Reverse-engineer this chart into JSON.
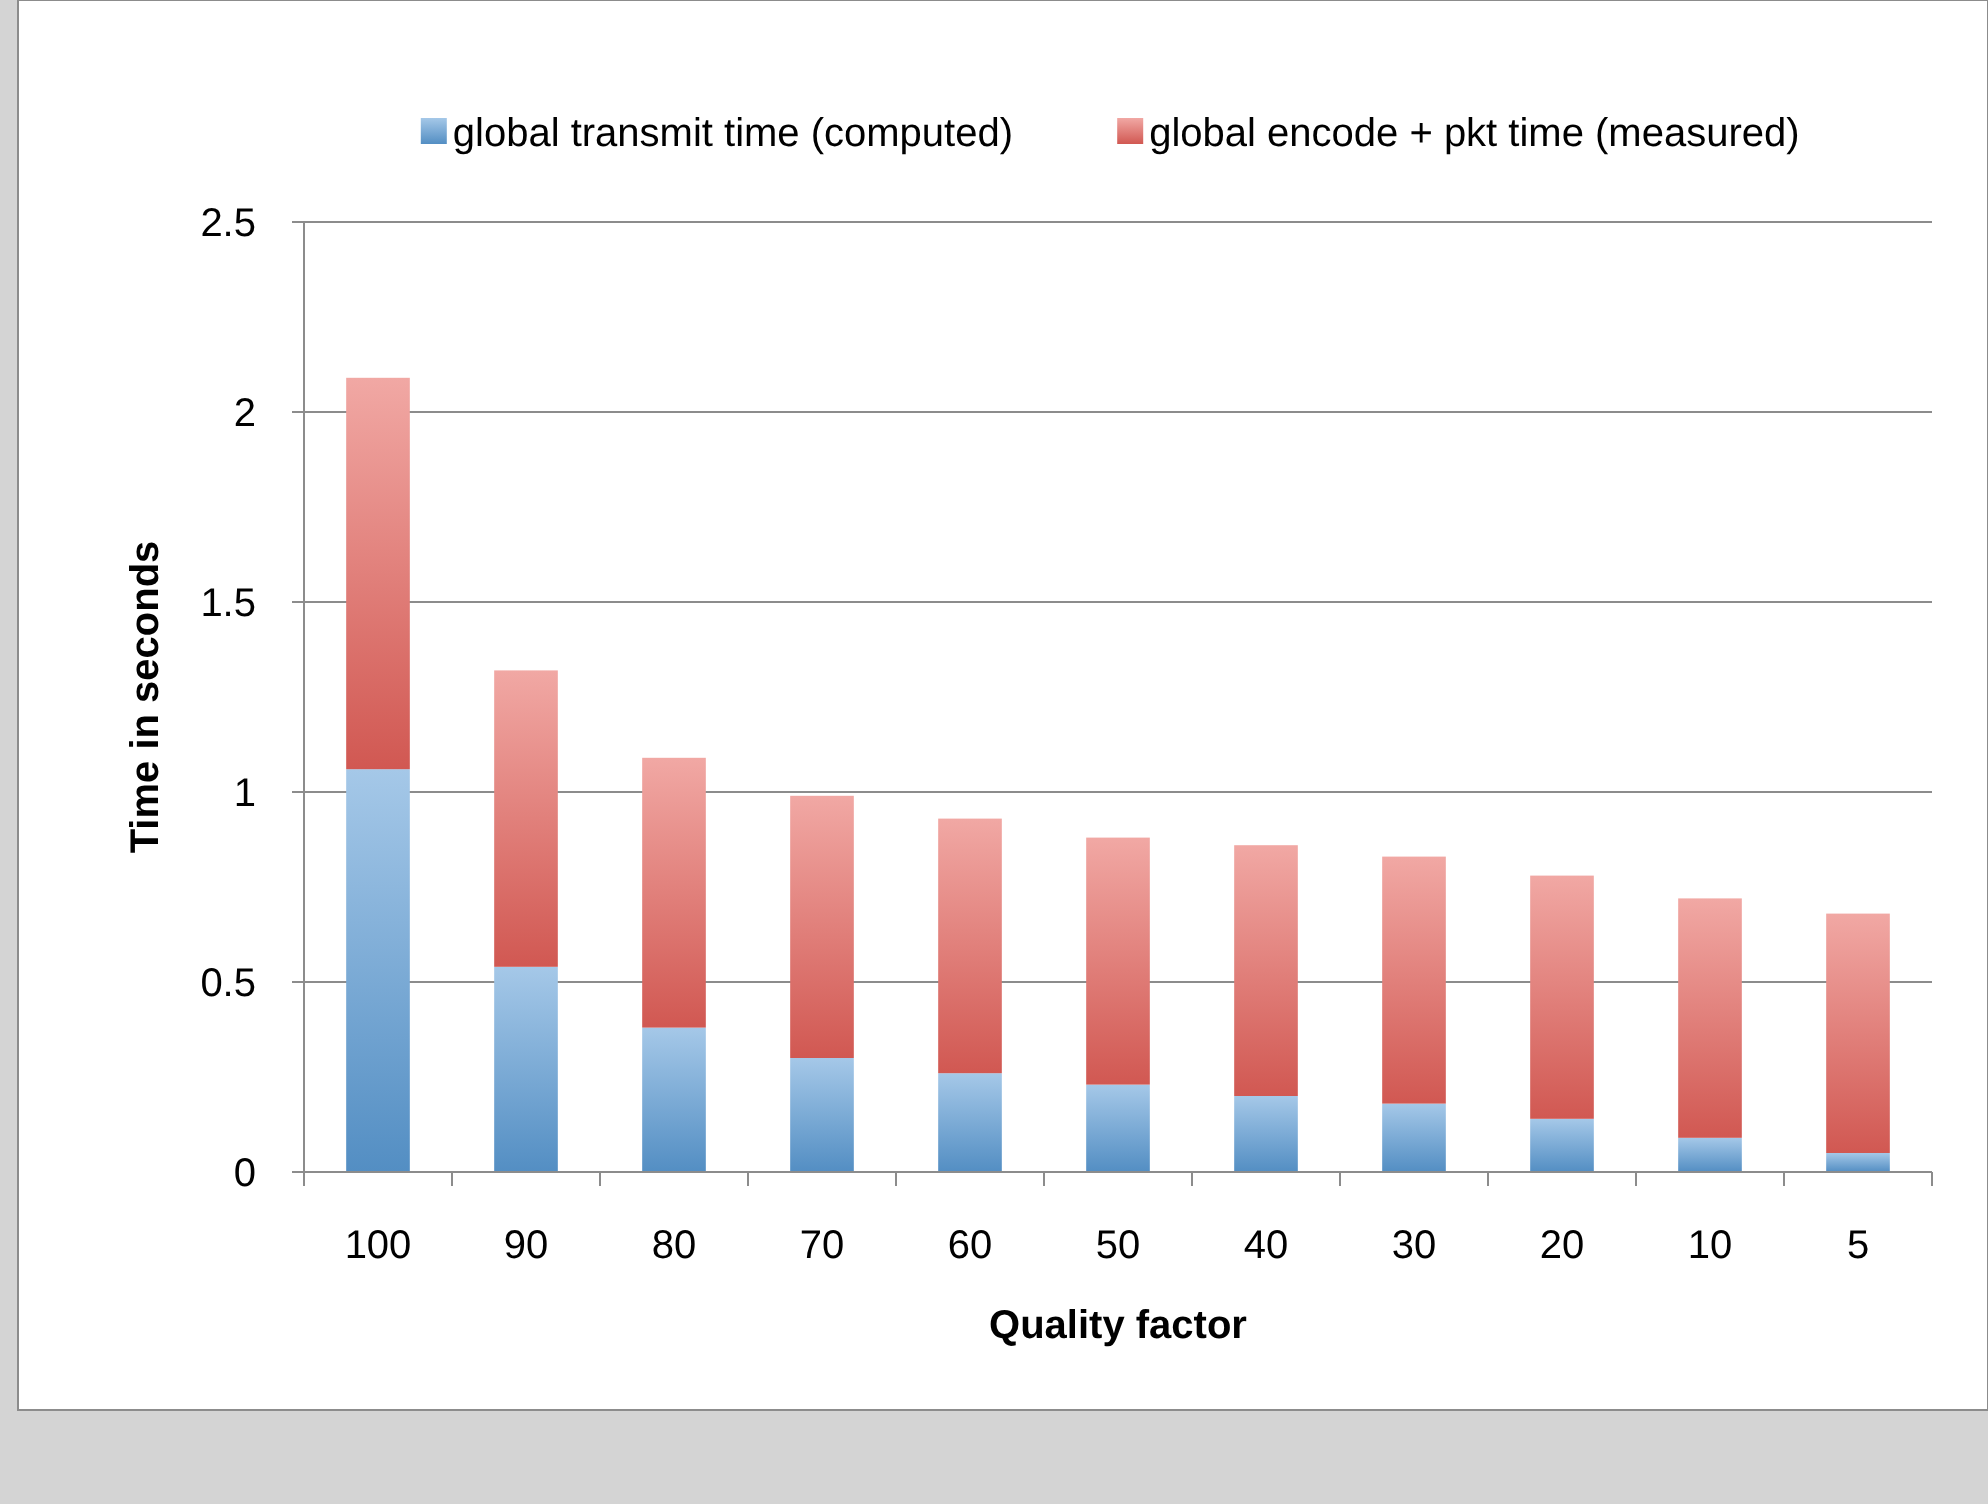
{
  "chart_data": {
    "type": "bar",
    "stacked": true,
    "xlabel": "Quality factor",
    "ylabel": "Time in seconds",
    "categories": [
      "100",
      "90",
      "80",
      "70",
      "60",
      "50",
      "40",
      "30",
      "20",
      "10",
      "5"
    ],
    "series": [
      {
        "name": "global transmit time (computed)",
        "color": "#5b9bd5",
        "values": [
          1.06,
          0.54,
          0.38,
          0.3,
          0.26,
          0.23,
          0.2,
          0.18,
          0.14,
          0.09,
          0.05
        ]
      },
      {
        "name": "global encode + pkt time (measured)",
        "color": "#e5605a",
        "values": [
          1.03,
          0.78,
          0.71,
          0.69,
          0.67,
          0.65,
          0.66,
          0.65,
          0.64,
          0.63,
          0.63
        ]
      }
    ],
    "ylim": [
      0,
      2.5
    ],
    "yticks": [
      0,
      {
        "value": 0.5,
        "label": "0.5"
      },
      1,
      {
        "value": 1.5,
        "label": "1.5"
      },
      2,
      {
        "value": 2.5,
        "label": "2.5"
      }
    ],
    "grid": "y",
    "legend": "top"
  }
}
